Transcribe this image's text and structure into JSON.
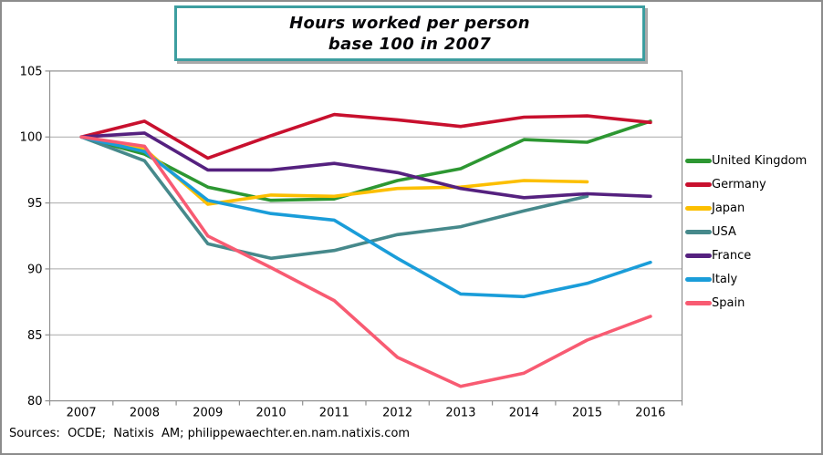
{
  "title": {
    "line1": "Hours worked per person",
    "line2": "base 100 in 2007"
  },
  "sources": "Sources:  OCDE;  Natixis  AM; philippewaechter.en.nam.natixis.com",
  "chart_data": {
    "type": "line",
    "x": [
      "2007",
      "2008",
      "2009",
      "2010",
      "2011",
      "2012",
      "2013",
      "2014",
      "2015",
      "2016"
    ],
    "series": [
      {
        "name": "United Kingdom",
        "color": "#2d9732",
        "values": [
          100,
          98.7,
          96.2,
          95.2,
          95.3,
          96.7,
          97.6,
          99.8,
          99.6,
          101.2
        ]
      },
      {
        "name": "Germany",
        "color": "#c8102e",
        "values": [
          100,
          101.2,
          98.4,
          100.1,
          101.7,
          101.3,
          100.8,
          101.5,
          101.6,
          101.1
        ]
      },
      {
        "name": "Japan",
        "color": "#fcbf00",
        "values": [
          100,
          99.1,
          94.9,
          95.6,
          95.5,
          96.1,
          96.2,
          96.7,
          96.6,
          null
        ]
      },
      {
        "name": "USA",
        "color": "#46898b",
        "values": [
          100,
          98.2,
          91.9,
          90.8,
          91.4,
          92.6,
          93.2,
          94.4,
          95.5,
          null
        ]
      },
      {
        "name": "France",
        "color": "#55217f",
        "values": [
          100,
          100.3,
          97.5,
          97.5,
          98,
          97.3,
          96.1,
          95.4,
          95.7,
          95.5
        ]
      },
      {
        "name": "Italy",
        "color": "#1a9dd9",
        "values": [
          100,
          98.9,
          95.2,
          94.2,
          93.7,
          90.8,
          88.1,
          87.9,
          88.9,
          90.5
        ]
      },
      {
        "name": "Spain",
        "color": "#f85b72",
        "values": [
          100,
          99.3,
          92.5,
          90.1,
          87.6,
          83.3,
          81.1,
          82.1,
          84.6,
          86.4
        ]
      }
    ],
    "ylim": [
      80,
      105
    ],
    "yticks": [
      80,
      85,
      90,
      95,
      100,
      105
    ],
    "grid": true,
    "legend_position": "right",
    "grid_color": "#a9a9a9",
    "axis_color": "#8f8f8f"
  }
}
